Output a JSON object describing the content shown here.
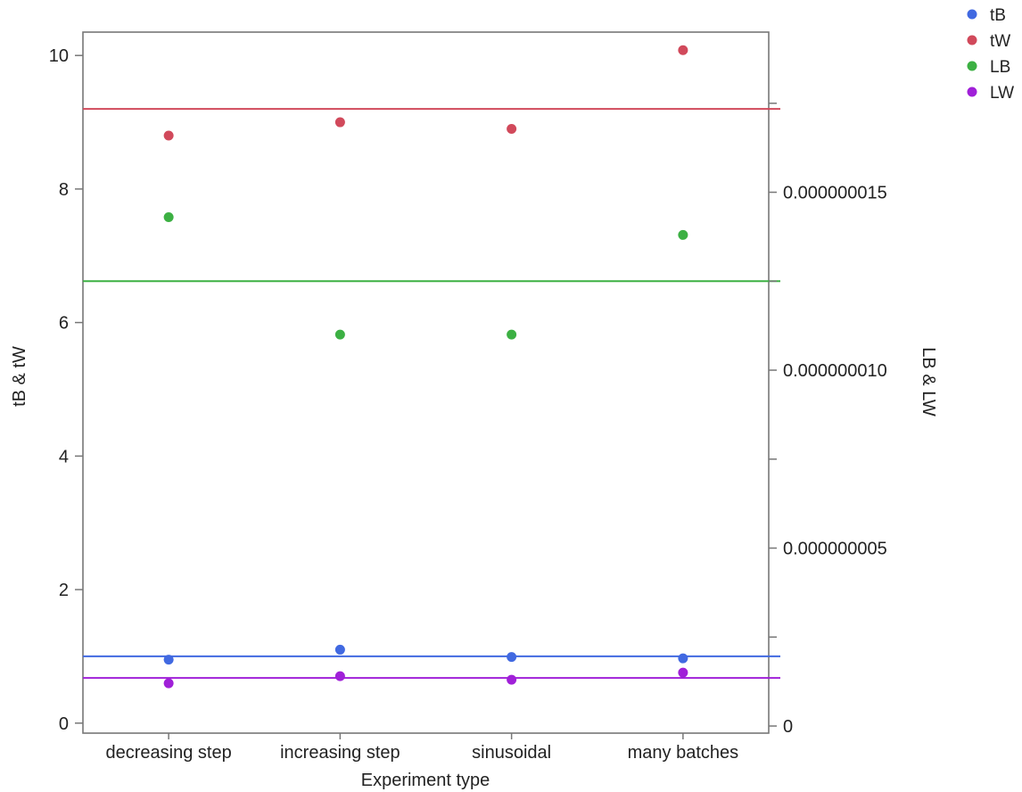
{
  "chart_data": {
    "type": "scatter",
    "categories": [
      "decreasing step",
      "increasing step",
      "sinusoidal",
      "many batches"
    ],
    "xlabel": "Experiment type",
    "ylabel": "tB & tW",
    "y2label": "LB & LW",
    "ylim": [
      -0.15,
      10.35
    ],
    "y2lim": [
      -2e-10,
      1.95e-08
    ],
    "yticks": [
      0,
      2,
      4,
      6,
      8,
      10
    ],
    "yticklabels": [
      "0",
      "2",
      "4",
      "6",
      "8",
      "10"
    ],
    "y2ticks": [
      0,
      2.5e-09,
      5e-09,
      7.5e-09,
      1e-08,
      1.25e-08,
      1.5e-08,
      1.75e-08
    ],
    "y2ticklabels": [
      "0",
      "",
      "0.000000005",
      "",
      "0.000000010",
      "",
      "0.000000015",
      ""
    ],
    "grid": false,
    "legend_position": "top-right, outside plot",
    "series": [
      {
        "name": "tB",
        "axis": "left",
        "color": "#4169E1",
        "values": [
          0.95,
          1.1,
          0.99,
          0.97
        ],
        "mean_line": 1.0
      },
      {
        "name": "tW",
        "axis": "left",
        "color": "#D1495B",
        "values": [
          8.8,
          9.0,
          8.9,
          10.08
        ],
        "mean_line": 9.2
      },
      {
        "name": "LB",
        "axis": "right",
        "color": "#3CB043",
        "values": [
          1.43e-08,
          1.1e-08,
          1.1e-08,
          1.38e-08
        ],
        "mean_line": 1.25e-08
      },
      {
        "name": "LW",
        "axis": "right",
        "color": "#A020D8",
        "values": [
          1.2e-09,
          1.4e-09,
          1.3e-09,
          1.5e-09
        ],
        "mean_line": 1.35e-09
      }
    ]
  }
}
